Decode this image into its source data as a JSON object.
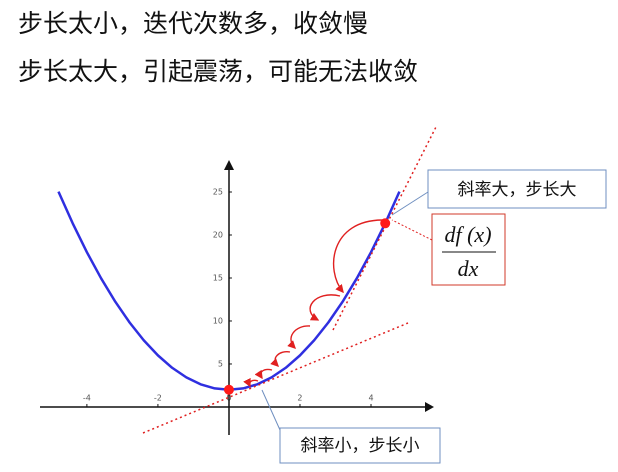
{
  "heading": {
    "lines": [
      "步长太小，迭代次数多，收敛慢",
      "步长太大，引起震荡，可能无法收敛"
    ]
  },
  "chart_data": {
    "type": "line",
    "x": [
      -4.8,
      -4.4,
      -4,
      -3.6,
      -3.2,
      -2.8,
      -2.4,
      -2,
      -1.6,
      -1.2,
      -0.8,
      -0.4,
      0,
      0.4,
      0.8,
      1.2,
      1.6,
      2,
      2.4,
      2.8,
      3.2,
      3.6,
      4,
      4.4,
      4.8
    ],
    "series": [
      {
        "color": "#2f2fe0",
        "values": [
          25.04,
          21.36,
          18,
          14.96,
          12.24,
          9.84,
          7.76,
          6,
          4.56,
          3.44,
          2.64,
          2.16,
          2,
          2.16,
          2.64,
          3.44,
          4.56,
          6,
          7.76,
          9.84,
          12.24,
          14.96,
          18,
          21.36,
          25.04
        ]
      }
    ],
    "points": {
      "color": "#ff1a1a",
      "x": [
        0,
        4.4
      ],
      "y": [
        2,
        21.36
      ]
    },
    "xlim": [
      -5.32,
      5.52
    ],
    "ylim": [
      -3.26,
      28.14
    ],
    "xticks": [
      -4,
      -2,
      0,
      2,
      4
    ],
    "yticks": [
      5,
      10,
      15,
      20,
      25
    ],
    "annotations": {
      "steep": "斜率大，步长大",
      "flat": "斜率小，步长小",
      "numerator": "df (x)",
      "denominator": "dx"
    }
  }
}
